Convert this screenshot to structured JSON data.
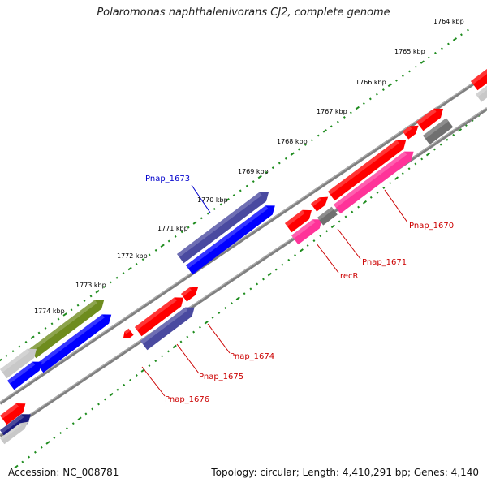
{
  "title": "Polaromonas naphthalenivorans CJ2, complete genome",
  "footer": {
    "accession": "Accession: NC_008781",
    "summary": "Topology: circular; Length: 4,410,291 bp; Genes: 4,140"
  },
  "colors": {
    "red": "#ff0000",
    "navy": "#4a4aa0",
    "blue": "#0000ff",
    "olive": "#6e8c1e",
    "pink": "#ff3399",
    "gray": "#707070",
    "lightgray": "#c8c8c8",
    "backbone": "#808080",
    "dots": "#1e8c1e",
    "red_label": "#cc0000",
    "blue_label": "#0000cc"
  },
  "ticks": [
    {
      "label": "1764 kbp"
    },
    {
      "label": "1765 kbp"
    },
    {
      "label": "1766 kbp"
    },
    {
      "label": "1767 kbp"
    },
    {
      "label": "1768 kbp"
    },
    {
      "label": "1769 kbp"
    },
    {
      "label": "1770 kbp"
    },
    {
      "label": "1771 kbp"
    },
    {
      "label": "1772 kbp"
    },
    {
      "label": "1773 kbp"
    },
    {
      "label": "1774 kbp"
    }
  ],
  "gene_labels": [
    {
      "name": "Pnap_1673",
      "color": "blue"
    },
    {
      "name": "Pnap_1670",
      "color": "red"
    },
    {
      "name": "Pnap_1671",
      "color": "red"
    },
    {
      "name": "recR",
      "color": "red"
    },
    {
      "name": "Pnap_1674",
      "color": "red"
    },
    {
      "name": "Pnap_1675",
      "color": "red"
    },
    {
      "name": "Pnap_1676",
      "color": "red"
    }
  ]
}
